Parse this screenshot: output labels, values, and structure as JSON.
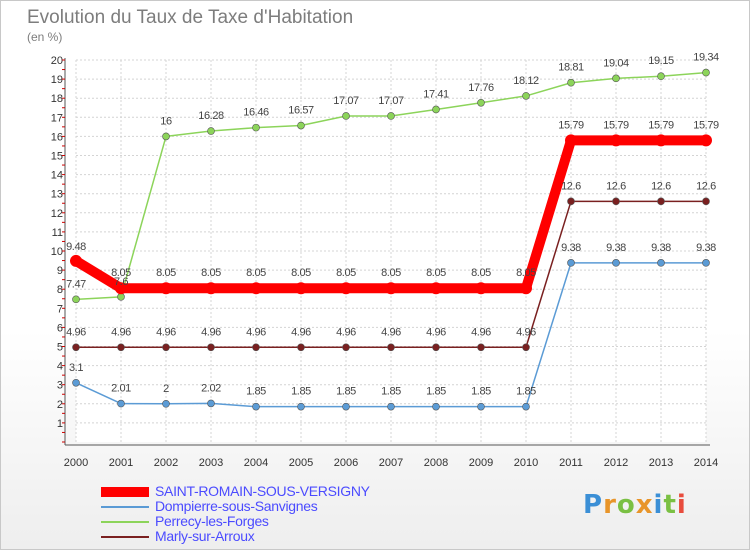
{
  "title": "Evolution du Taux de Taxe d'Habitation",
  "unit": "(en %)",
  "logo_text": "Proxiti",
  "chart_data": {
    "type": "line",
    "x": [
      2000,
      2001,
      2002,
      2003,
      2004,
      2005,
      2006,
      2007,
      2008,
      2009,
      2010,
      2011,
      2012,
      2013,
      2014
    ],
    "ylim": [
      0,
      20
    ],
    "yticks": [
      1,
      2,
      3,
      4,
      5,
      6,
      7,
      8,
      9,
      10,
      11,
      12,
      13,
      14,
      15,
      16,
      17,
      18,
      19,
      20
    ],
    "grid": true,
    "series": [
      {
        "name": "SAINT-ROMAIN-SOUS-VERSIGNY",
        "color": "#ff0000",
        "values": [
          9.48,
          8.05,
          8.05,
          8.05,
          8.05,
          8.05,
          8.05,
          8.05,
          8.05,
          8.05,
          8.05,
          15.79,
          15.79,
          15.79,
          15.79
        ],
        "labels": [
          "9.48",
          "8.05",
          "8.05",
          "8.05",
          "8.05",
          "8.05",
          "8.05",
          "8.05",
          "8.05",
          "8.05",
          "8.05",
          "15.79",
          "15.79",
          "15.79",
          "15.79"
        ]
      },
      {
        "name": "Dompierre-sous-Sanvignes",
        "color": "#5b9bd5",
        "values": [
          3.1,
          2.01,
          2,
          2.02,
          1.85,
          1.85,
          1.85,
          1.85,
          1.85,
          1.85,
          1.85,
          9.38,
          9.38,
          9.38,
          9.38
        ],
        "labels": [
          "3.1",
          "2.01",
          "2",
          "2.02",
          "1.85",
          "1.85",
          "1.85",
          "1.85",
          "1.85",
          "1.85",
          "1.85",
          "9.38",
          "9.38",
          "9.38",
          "9.38"
        ]
      },
      {
        "name": "Perrecy-les-Forges",
        "color": "#8cd45a",
        "values": [
          7.47,
          7.6,
          16,
          16.28,
          16.46,
          16.57,
          17.07,
          17.07,
          17.41,
          17.76,
          18.12,
          18.81,
          19.04,
          19.15,
          19.34
        ],
        "labels": [
          "7.47",
          "7.6",
          "16",
          "16.28",
          "16.46",
          "16.57",
          "17.07",
          "17.07",
          "17.41",
          "17.76",
          "18.12",
          "18.81",
          "19.04",
          "19.15",
          "19.34"
        ]
      },
      {
        "name": "Marly-sur-Arroux",
        "color": "#7a2020",
        "values": [
          4.96,
          4.96,
          4.96,
          4.96,
          4.96,
          4.96,
          4.96,
          4.96,
          4.96,
          4.96,
          4.96,
          12.6,
          12.6,
          12.6,
          12.6
        ],
        "labels": [
          "4.96",
          "4.96",
          "4.96",
          "4.96",
          "4.96",
          "4.96",
          "4.96",
          "4.96",
          "4.96",
          "4.96",
          "4.96",
          "12.6",
          "12.6",
          "12.6",
          "12.6"
        ]
      }
    ]
  }
}
